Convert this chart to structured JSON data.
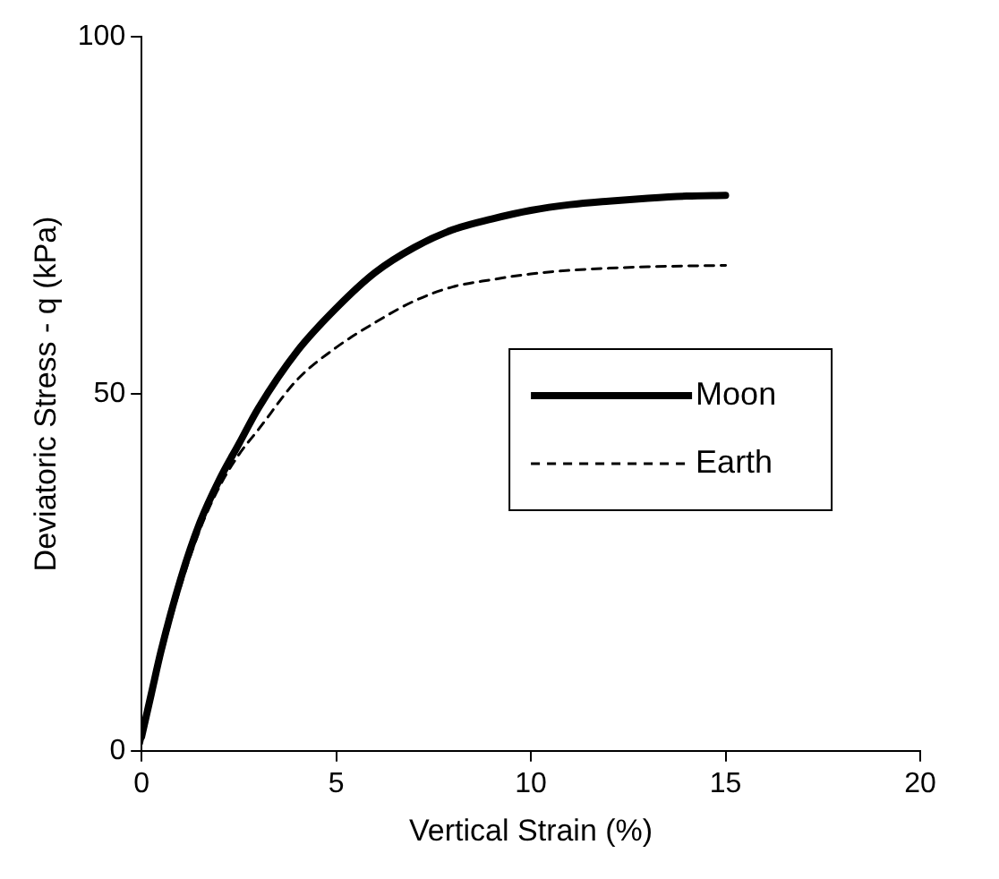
{
  "chart_data": {
    "type": "line",
    "xlabel": "Vertical Strain (%)",
    "ylabel": "Deviatoric Stress - q (kPa)",
    "xlim": [
      0,
      20
    ],
    "xticks": [
      0,
      5,
      10,
      15,
      20
    ],
    "ylim": [
      0,
      100
    ],
    "yticks": [
      0,
      50,
      100
    ],
    "grid": false,
    "legend": "center right",
    "marker": "none",
    "series": [
      {
        "name": "Moon",
        "color": "#000000",
        "line_style": "solid",
        "x": [
          0,
          0.25,
          0.5,
          1,
          1.5,
          2,
          2.5,
          3,
          4,
          5,
          6,
          7,
          8,
          9,
          10,
          11,
          12,
          13,
          14,
          15
        ],
        "values": [
          2,
          8,
          14,
          24,
          32,
          38,
          43,
          48,
          56,
          62,
          67,
          70.5,
          73,
          74.5,
          75.7,
          76.5,
          77,
          77.4,
          77.7,
          77.8
        ]
      },
      {
        "name": "Earth",
        "color": "#000000",
        "line_style": "dashed",
        "x": [
          0,
          0.25,
          0.5,
          1,
          1.5,
          2,
          2.5,
          3,
          4,
          5,
          6,
          7,
          8,
          9,
          10,
          11,
          12,
          13,
          15
        ],
        "values": [
          1,
          7,
          13,
          23,
          31,
          37,
          41.5,
          45,
          52,
          56.5,
          60,
          63,
          65,
          66,
          66.8,
          67.3,
          67.6,
          67.8,
          68
        ]
      }
    ]
  }
}
